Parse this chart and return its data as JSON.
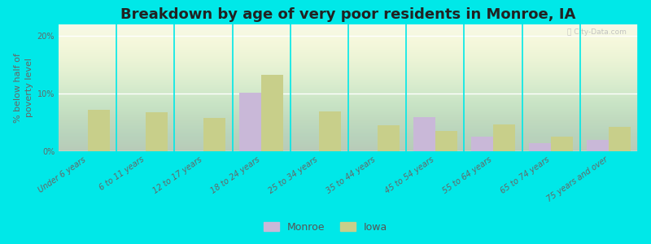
{
  "title": "Breakdown by age of very poor residents in Monroe, IA",
  "ylabel": "% below half of\npoverty level",
  "categories": [
    "Under 6 years",
    "6 to 11 years",
    "12 to 17 years",
    "18 to 24 years",
    "25 to 34 years",
    "35 to 44 years",
    "45 to 54 years",
    "55 to 64 years",
    "65 to 74 years",
    "75 years and over"
  ],
  "monroe_values": [
    0,
    0,
    0,
    10.2,
    0,
    0,
    5.9,
    2.5,
    1.4,
    2.0
  ],
  "iowa_values": [
    7.2,
    6.8,
    5.8,
    13.3,
    6.9,
    4.5,
    3.5,
    4.7,
    2.6,
    4.3
  ],
  "monroe_color": "#c9b8d8",
  "iowa_color": "#c8cf8a",
  "background_outer": "#00e8e8",
  "ylim": [
    0,
    22
  ],
  "yticks": [
    0,
    10,
    20
  ],
  "ytick_labels": [
    "0%",
    "10%",
    "20%"
  ],
  "bar_width": 0.38,
  "title_fontsize": 13,
  "ylabel_fontsize": 8,
  "tick_fontsize": 7,
  "legend_fontsize": 9
}
